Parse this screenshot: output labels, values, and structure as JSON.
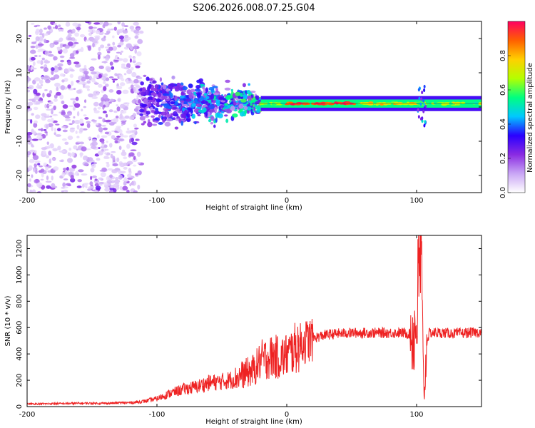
{
  "title": "S206.2026.008.07.25.G04",
  "chart_data": [
    {
      "type": "heatmap",
      "name": "spectrogram",
      "xlabel": "Height of straight line (km)",
      "ylabel": "Frequency (Hz)",
      "xlim": [
        -200,
        150
      ],
      "ylim": [
        -25,
        25
      ],
      "xticks": [
        -200,
        -100,
        0,
        100
      ],
      "yticks": [
        -20,
        -10,
        0,
        10,
        20
      ],
      "colorbar": {
        "label": "Normalized spectral amplitude",
        "range": [
          0,
          1
        ],
        "ticks": [
          "0.0",
          "0.2",
          "0.4",
          "0.6",
          "0.8"
        ],
        "stops": [
          "#ffffff",
          "#c9a6f5",
          "#8a2be2",
          "#2a00ff",
          "#00c8ff",
          "#00ff80",
          "#b4ff00",
          "#ffd000",
          "#ff6000",
          "#ff0060"
        ]
      },
      "features": [
        {
          "x_range": [
            -200,
            -112
          ],
          "freq_spread": 25,
          "amplitude": 0.15,
          "description": "noise"
        },
        {
          "x_range": [
            -112,
            -20
          ],
          "freq_spread": 8,
          "amplitude": 0.35
        },
        {
          "x_range": [
            -20,
            150
          ],
          "freq_center": 1,
          "amplitude": 0.95
        }
      ]
    },
    {
      "type": "line",
      "name": "snr",
      "xlabel": "Height of straight line (km)",
      "ylabel": "SNR (10 * v/v)",
      "xlim": [
        -200,
        150
      ],
      "ylim": [
        0,
        1300
      ],
      "xticks": [
        -200,
        -100,
        0,
        100
      ],
      "yticks": [
        0,
        200,
        400,
        600,
        800,
        1000,
        1200
      ],
      "color": "#ee2222",
      "series": [
        {
          "name": "SNR",
          "x": [
            -200,
            -180,
            -160,
            -140,
            -120,
            -110,
            -100,
            -90,
            -80,
            -70,
            -60,
            -50,
            -40,
            -35,
            -30,
            -25,
            -20,
            -15,
            -10,
            -5,
            0,
            10,
            20,
            30,
            40,
            50,
            60,
            70,
            80,
            90,
            96,
            98,
            100,
            102,
            103,
            104,
            105,
            106,
            108,
            110,
            120,
            130,
            140,
            150
          ],
          "y": [
            20,
            22,
            25,
            25,
            30,
            40,
            60,
            100,
            130,
            150,
            180,
            190,
            210,
            240,
            260,
            280,
            350,
            370,
            380,
            370,
            390,
            470,
            520,
            545,
            555,
            560,
            560,
            560,
            560,
            560,
            550,
            540,
            650,
            1000,
            1300,
            900,
            300,
            80,
            500,
            560,
            560,
            555,
            560,
            565
          ]
        }
      ]
    }
  ]
}
